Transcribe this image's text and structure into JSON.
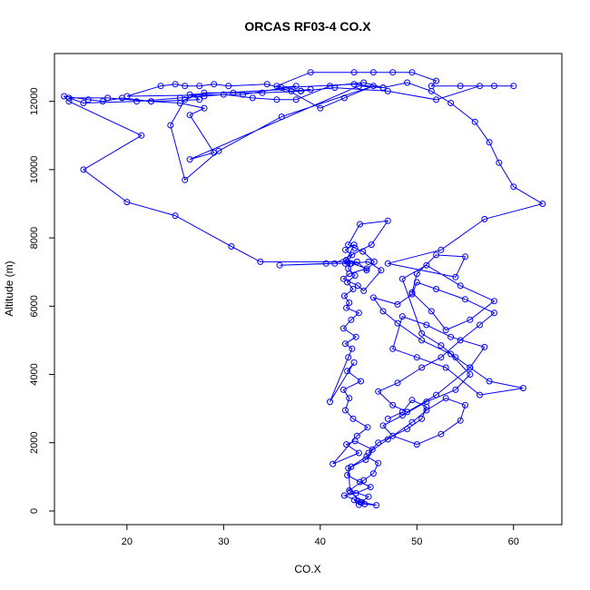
{
  "chart_data": {
    "type": "line",
    "title": "ORCAS RF03-4 CO.X",
    "xlabel": "CO.X",
    "ylabel": "Altitude (m)",
    "xlim": [
      12.5,
      65
    ],
    "ylim": [
      -400,
      13400
    ],
    "xticks": [
      20,
      30,
      40,
      50,
      60
    ],
    "yticks": [
      0,
      2000,
      4000,
      6000,
      8000,
      10000,
      12000
    ],
    "grid": false,
    "legend": "none",
    "color": "#0000ff",
    "marker": "open-circle",
    "series": [
      {
        "x": [
          44.0,
          43.5,
          44.2,
          45.0,
          43.0,
          44.5,
          45.5,
          46.0,
          44.8,
          43.2,
          42.8,
          44.1,
          45.2,
          43.7,
          42.5,
          43.9,
          44.6,
          45.8,
          44.3,
          43.1,
          42.9,
          44.7,
          45.4,
          43.6,
          42.7,
          44.0,
          41.3,
          43.8,
          44.9,
          43.4,
          42.6,
          43.0,
          42.4,
          44.2,
          42.8,
          43.5,
          41.0,
          42.9,
          43.3,
          42.6,
          43.7,
          42.4,
          43.2,
          44.0,
          42.7,
          43.0,
          42.5,
          43.4,
          42.8,
          43.6,
          42.9,
          43.1,
          42.7,
          43.5,
          42.6,
          43.3,
          42.8,
          44.8,
          43.0,
          42.4,
          43.9,
          44.5,
          46.3,
          45.0,
          43.2,
          42.6,
          40.6,
          35.8,
          41.5,
          45.3,
          47.0,
          44.1,
          42.9,
          43.6,
          44.4,
          45.6,
          44.8,
          43.8,
          33.8,
          30.8,
          25.0,
          20.0,
          15.5,
          21.5,
          14.0,
          13.5,
          16.0,
          17.5,
          19.5,
          22.5,
          25.5,
          28.0,
          26.5,
          29.0,
          26.5,
          44.0,
          46.5,
          43.5,
          36.0,
          37.5,
          32.0,
          20.0,
          23.5,
          25.0,
          26.0,
          27.5,
          29.0,
          30.5,
          34.5,
          37.0,
          39.0,
          38.0,
          35.5,
          39.0,
          43.5,
          45.5,
          47.5,
          49.5,
          52.0,
          51.5,
          54.5,
          58.0,
          60.0,
          56.5,
          52.0,
          47.0,
          41.5,
          38.0,
          34.0,
          31.0,
          28.0,
          26.0,
          24.5,
          26.0,
          29.5,
          36.0,
          45.5,
          42.5,
          40.0,
          36.5,
          26.5,
          27.5,
          22.5,
          18.0,
          14.0,
          15.5,
          21.0,
          25.5,
          28.0,
          30.0,
          33.0,
          35.5,
          37.5,
          41.0,
          44.5,
          46.5,
          49.0,
          51.5,
          53.5,
          56.0,
          57.5,
          58.5,
          60.0,
          63.0,
          57.0,
          52.5,
          47.0,
          54.0,
          55.0,
          52.0,
          50.0,
          49.5,
          51.5,
          53.0,
          55.5,
          58.0,
          54.5,
          51.0,
          48.5,
          50.5,
          52.5,
          54.0,
          55.5,
          57.5,
          61.0,
          56.5,
          53.0,
          50.0,
          47.5,
          48.5,
          51.0,
          53.5,
          57.0,
          55.5,
          52.0,
          49.0,
          47.5,
          46.0,
          48.0,
          50.5,
          52.5,
          54.5,
          56.5,
          58.0,
          55.0,
          52.0,
          50.0,
          49.5,
          48.0,
          45.5,
          46.5,
          48.0,
          50.5,
          53.5,
          55.5,
          54.0,
          51.0,
          48.5,
          46.5,
          47.5,
          50.0,
          52.5,
          54.5,
          55.0,
          53.0,
          51.0,
          49.5,
          47.0,
          45.0,
          46.0,
          49.0,
          50.5,
          51.0,
          49.5,
          48.5,
          47.0
        ],
        "y": [
          180,
          320,
          250,
          420,
          600,
          900,
          1100,
          1400,
          1600,
          1300,
          1050,
          850,
          700,
          520,
          450,
          300,
          200,
          170,
          260,
          560,
          1250,
          1500,
          1800,
          2050,
          1950,
          1700,
          1380,
          2200,
          2450,
          2700,
          2950,
          3300,
          3550,
          3800,
          4100,
          4350,
          3200,
          4500,
          4750,
          4900,
          5100,
          5350,
          5600,
          5800,
          5950,
          6100,
          6300,
          6500,
          6700,
          6900,
          7100,
          7250,
          7350,
          7800,
          7650,
          7500,
          7300,
          7100,
          6950,
          6800,
          6600,
          6450,
          7050,
          7300,
          7250,
          7250,
          7250,
          7200,
          7250,
          7800,
          8500,
          8400,
          7800,
          7700,
          7600,
          7300,
          7050,
          7300,
          7300,
          7750,
          8650,
          9050,
          10000,
          11000,
          12000,
          12150,
          12050,
          12000,
          12100,
          12000,
          11950,
          11800,
          11600,
          10500,
          10300,
          12450,
          12400,
          12500,
          12400,
          12450,
          12200,
          12150,
          12450,
          12500,
          12450,
          12450,
          12500,
          12450,
          12500,
          12300,
          12350,
          12300,
          12450,
          12850,
          12850,
          12850,
          12850,
          12850,
          12600,
          12450,
          12450,
          12450,
          12450,
          12450,
          12050,
          12300,
          12400,
          12300,
          12250,
          12250,
          12250,
          12050,
          11300,
          9700,
          10550,
          11550,
          12450,
          12100,
          11800,
          12350,
          12200,
          12050,
          12000,
          12100,
          12100,
          11950,
          12000,
          12100,
          12150,
          12200,
          12100,
          12050,
          12050,
          12450,
          12550,
          12400,
          12550,
          12300,
          11950,
          11400,
          10800,
          10200,
          9500,
          9000,
          8550,
          7650,
          7250,
          6850,
          7450,
          7500,
          6950,
          6400,
          5850,
          5300,
          5600,
          6150,
          6600,
          7200,
          6800,
          5200,
          4850,
          4500,
          4200,
          3800,
          3600,
          3400,
          4200,
          4500,
          4750,
          5700,
          5450,
          5100,
          4800,
          4200,
          3400,
          2900,
          3100,
          3500,
          3750,
          4200,
          4500,
          5000,
          5450,
          5800,
          6200,
          6500,
          6700,
          6350,
          6050,
          6250,
          5850,
          5500,
          5000,
          4600,
          4000,
          3550,
          3200,
          2800,
          2500,
          2200,
          1950,
          2250,
          2650,
          3100,
          3300,
          2950,
          2600,
          2100,
          1700,
          2000,
          2400,
          2700,
          3050,
          3250,
          2900,
          2700
        ]
      }
    ]
  }
}
